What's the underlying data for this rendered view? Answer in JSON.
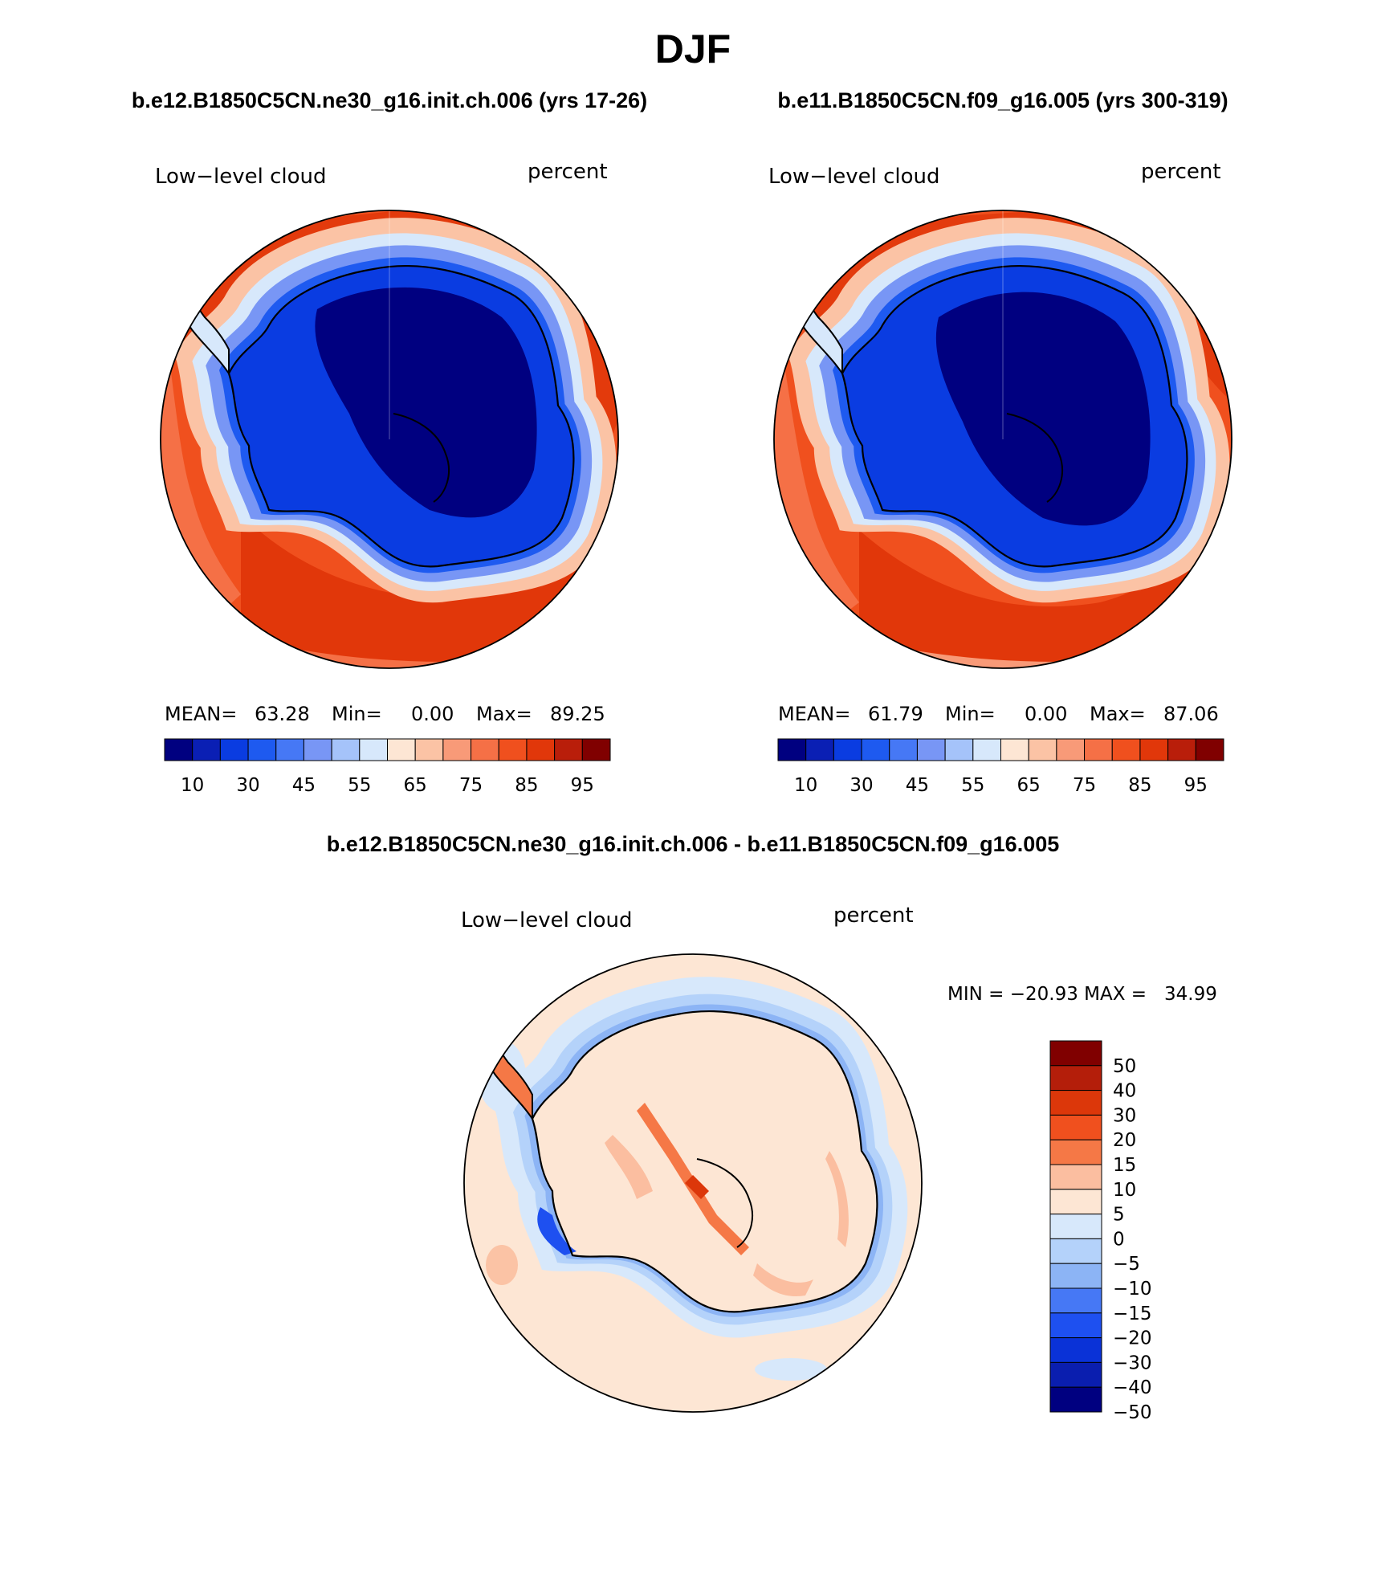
{
  "page": {
    "season": "DJF"
  },
  "panels": [
    {
      "case_title": "b.e12.B1850C5CN.ne30_g16.init.ch.006 (yrs 17-26)",
      "variable": "Low−level cloud",
      "units": "percent",
      "stats": {
        "mean_label": "MEAN=",
        "mean": "63.28",
        "min_label": "Min=",
        "min": "0.00",
        "max_label": "Max=",
        "max": "89.25"
      }
    },
    {
      "case_title": "b.e11.B1850C5CN.f09_g16.005 (yrs 300-319)",
      "variable": "Low−level cloud",
      "units": "percent",
      "stats": {
        "mean_label": "MEAN=",
        "mean": "61.79",
        "min_label": "Min=",
        "min": "0.00",
        "max_label": "Max=",
        "max": "87.06"
      }
    }
  ],
  "colorbar": {
    "colors": [
      "#000080",
      "#0a1fb4",
      "#0a3ce1",
      "#1e5af0",
      "#4678f5",
      "#7896f5",
      "#a5c3fa",
      "#d7e8fb",
      "#fde6d4",
      "#fbc3a5",
      "#f89a78",
      "#f57046",
      "#f0501e",
      "#e1370a",
      "#b91e0a",
      "#800000"
    ],
    "tick_labels": [
      "10",
      "30",
      "45",
      "55",
      "65",
      "75",
      "85",
      "95"
    ]
  },
  "diff": {
    "title": "b.e12.B1850C5CN.ne30_g16.init.ch.006 - b.e11.B1850C5CN.f09_g16.005",
    "variable": "Low−level cloud",
    "units": "percent",
    "min_max": "MIN = −20.93 MAX =   34.99",
    "colorbar_colors": [
      "#800000",
      "#b41e0a",
      "#dc370a",
      "#f0501e",
      "#f57846",
      "#fbbea0",
      "#fde6d4",
      "#d7e8fb",
      "#b4d2fa",
      "#8cb4f5",
      "#4678f5",
      "#1e50f0",
      "#0a32d7",
      "#0a1eaf",
      "#000080"
    ],
    "colorbar_labels": [
      "50",
      "40",
      "30",
      "20",
      "15",
      "10",
      "5",
      "0",
      "−5",
      "−10",
      "−15",
      "−20",
      "−30",
      "−40",
      "−50"
    ]
  }
}
